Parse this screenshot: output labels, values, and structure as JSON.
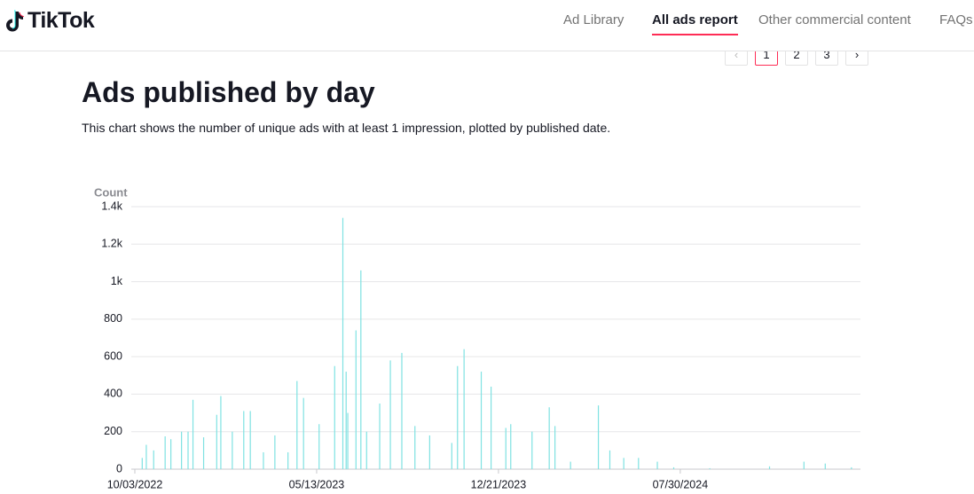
{
  "header": {
    "logo": "TikTok",
    "nav": [
      "Ad Library",
      "All ads report",
      "Other commercial content",
      "FAQs"
    ]
  },
  "pagination": [
    "1",
    "2",
    "3"
  ],
  "page": {
    "title": "Ads published by day",
    "description": "This chart shows the number of unique ads with at least 1 impression, plotted by published date."
  },
  "chart_data": {
    "type": "bar",
    "y_axis_label": "Count",
    "color": "#7fe2e2",
    "grid": true,
    "x": [
      "10/12/2022",
      "10/17/2022",
      "10/26/2022",
      "11/09/2022",
      "11/16/2022",
      "11/29/2022",
      "12/07/2022",
      "12/13/2022",
      "12/26/2022",
      "01/11/2023",
      "01/16/2023",
      "01/30/2023",
      "02/13/2023",
      "02/21/2023",
      "03/09/2023",
      "03/23/2023",
      "04/08/2023",
      "04/19/2023",
      "04/27/2023",
      "05/16/2023",
      "06/04/2023",
      "06/14/2023",
      "06/18/2023",
      "06/20/2023",
      "06/30/2023",
      "07/06/2023",
      "07/13/2023",
      "07/29/2023",
      "08/11/2023",
      "08/25/2023",
      "09/10/2023",
      "09/28/2023",
      "10/25/2023",
      "11/01/2023",
      "11/09/2023",
      "11/30/2023",
      "12/12/2023",
      "12/30/2023",
      "01/05/2024",
      "01/31/2024",
      "02/21/2024",
      "02/28/2024",
      "03/18/2024",
      "04/21/2024",
      "05/05/2024",
      "05/22/2024",
      "06/09/2024",
      "07/02/2024",
      "07/22/2024",
      "09/04/2024",
      "11/16/2024",
      "12/28/2024",
      "01/23/2025",
      "02/24/2025"
    ],
    "values": [
      60,
      130,
      100,
      175,
      160,
      200,
      200,
      370,
      170,
      290,
      390,
      200,
      310,
      310,
      90,
      180,
      90,
      470,
      380,
      240,
      550,
      1340,
      520,
      300,
      740,
      1060,
      200,
      350,
      580,
      620,
      230,
      180,
      140,
      550,
      640,
      520,
      440,
      220,
      240,
      200,
      330,
      230,
      40,
      340,
      100,
      60,
      60,
      40,
      10,
      5,
      15,
      40,
      30,
      10
    ],
    "xlim": [
      "10/03/2022",
      "03/07/2025"
    ],
    "xticks": [
      "10/03/2022",
      "05/13/2023",
      "12/21/2023",
      "07/30/2024"
    ],
    "ylim": [
      0,
      1400
    ],
    "yticks": [
      0,
      200,
      400,
      600,
      800,
      {
        "value": 1000,
        "label": "1k"
      },
      {
        "value": 1200,
        "label": "1.2k"
      },
      {
        "value": 1400,
        "label": "1.4k"
      }
    ]
  }
}
